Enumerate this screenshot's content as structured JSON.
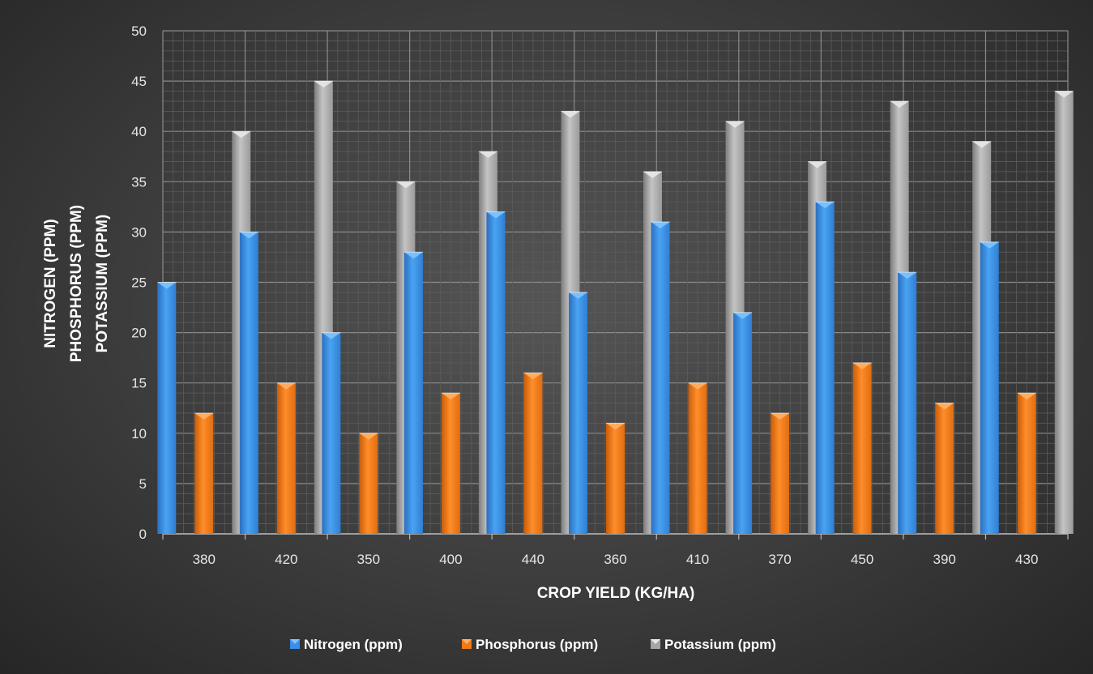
{
  "chart_data": {
    "type": "bar",
    "title": "",
    "xlabel": "CROP YIELD (KG/HA)",
    "ylabel_lines": [
      "NITROGEN (PPM)",
      "PHOSPHORUS (PPM)",
      "POTASSIUM (PPM)"
    ],
    "categories": [
      "380",
      "420",
      "350",
      "400",
      "440",
      "360",
      "410",
      "370",
      "450",
      "390",
      "430"
    ],
    "series": [
      {
        "name": "Nitrogen (ppm)",
        "color": "#3a8ee6",
        "values": [
          25,
          30,
          20,
          28,
          32,
          24,
          31,
          22,
          33,
          26,
          29
        ]
      },
      {
        "name": "Phosphorus (ppm)",
        "color": "#f07a1a",
        "values": [
          12,
          15,
          10,
          14,
          16,
          11,
          15,
          12,
          17,
          13,
          14
        ]
      },
      {
        "name": "Potassium (ppm)",
        "color": "#a5a5a5",
        "values": [
          40,
          45,
          35,
          38,
          42,
          36,
          41,
          37,
          43,
          39,
          44
        ]
      }
    ],
    "ylim": [
      0,
      50
    ],
    "yticks": [
      0,
      5,
      10,
      15,
      20,
      25,
      30,
      35,
      40,
      45,
      50
    ],
    "grid": true,
    "legend_position": "bottom"
  }
}
